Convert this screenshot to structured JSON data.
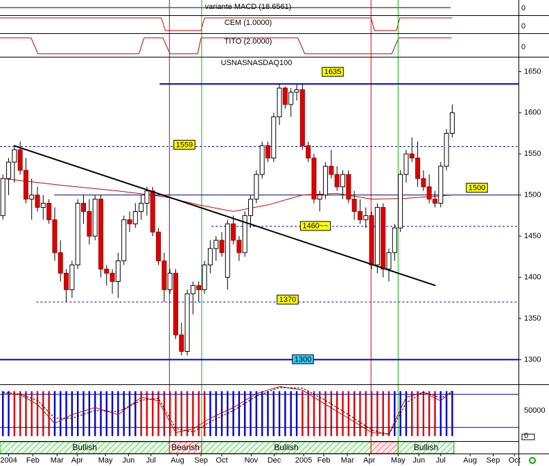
{
  "chart_data": [
    {
      "type": "strip",
      "title": "variante MACD (18.6561)",
      "ylim": [
        -1,
        1
      ],
      "yticks": [
        0
      ]
    },
    {
      "type": "step",
      "title": "CEM (1.0000)",
      "ylim": [
        -1,
        1
      ],
      "yticks": [
        0
      ],
      "xlim": [
        -0.5,
        89.5
      ],
      "color": "#cc0000",
      "x": [
        -0.5,
        27.5,
        28.2,
        34.4,
        35.0,
        63.9,
        64.5,
        68.3,
        68.9,
        78
      ],
      "values": [
        0.7,
        0.7,
        -0.7,
        -0.7,
        0.7,
        0.7,
        -0.7,
        -0.7,
        0.7,
        0.7
      ]
    },
    {
      "type": "step",
      "title": "TITO (2.0000)",
      "ylim": [
        -1,
        1
      ],
      "yticks": [
        0
      ],
      "xlim": [
        -0.5,
        89.5
      ],
      "color": "#cc0000",
      "x": [
        -0.5,
        4.9,
        6.1,
        23.6,
        24.5,
        27.8,
        29.0,
        33.8,
        34.4,
        51.2,
        52.4,
        67.5,
        68.7,
        77.9
      ],
      "values": [
        0.6,
        0.6,
        -0.75,
        -0.75,
        0.6,
        0.6,
        -0.75,
        -0.75,
        0.6,
        0.6,
        -0.75,
        -0.75,
        0.6,
        0.6
      ]
    },
    {
      "type": "candlestick",
      "title": "USNASNASDAQ100",
      "xlim": [
        -0.5,
        89.5
      ],
      "ylim": [
        1270,
        1668
      ],
      "yticks": [
        1300,
        1350,
        1400,
        1450,
        1500,
        1550,
        1600,
        1650
      ],
      "xticks": [
        {
          "value": 1,
          "label": "2004"
        },
        {
          "value": 5.2,
          "label": "Feb"
        },
        {
          "value": 9.4,
          "label": "Mar"
        },
        {
          "value": 12.9,
          "label": "Apr"
        },
        {
          "value": 17.8,
          "label": "May"
        },
        {
          "value": 21.8,
          "label": "Jun"
        },
        {
          "value": 25.7,
          "label": "Jul"
        },
        {
          "value": 30.3,
          "label": "Aug"
        },
        {
          "value": 34.4,
          "label": "Sep"
        },
        {
          "value": 38,
          "label": "Oct"
        },
        {
          "value": 43.1,
          "label": "Nov"
        },
        {
          "value": 47.1,
          "label": "Dec"
        },
        {
          "value": 52.2,
          "label": "2005"
        },
        {
          "value": 55.7,
          "label": "Feb"
        },
        {
          "value": 59.8,
          "label": "Mar"
        },
        {
          "value": 63.6,
          "label": "Apr"
        },
        {
          "value": 68.6,
          "label": "May"
        },
        {
          "value": 72.2,
          "label": "Jun"
        },
        {
          "value": 76,
          "label": "Jul"
        },
        {
          "value": 81.1,
          "label": "Aug"
        },
        {
          "value": 85.1,
          "label": "Sep"
        },
        {
          "value": 88.8,
          "label": "Oct"
        }
      ],
      "up_color": "#ffffff",
      "down_color": "#e00000",
      "x": [
        0,
        1,
        2,
        3,
        4,
        5,
        6,
        7,
        8,
        9,
        10,
        11,
        12,
        13,
        14,
        15,
        16,
        17,
        18,
        19,
        20,
        21,
        22,
        23,
        24,
        25,
        26,
        27,
        28,
        29,
        30,
        31,
        32,
        33,
        34,
        35,
        36,
        37,
        38,
        39,
        40,
        41,
        42,
        43,
        44,
        45,
        46,
        47,
        48,
        49,
        50,
        51,
        52,
        53,
        54,
        55,
        56,
        57,
        58,
        59,
        60,
        61,
        62,
        63,
        64,
        65,
        66,
        67,
        68,
        69,
        70,
        71,
        72,
        73,
        74,
        75,
        76,
        77,
        78
      ],
      "ohlc": [
        [
          1475,
          1525,
          1470,
          1520
        ],
        [
          1520,
          1545,
          1500,
          1540
        ],
        [
          1540,
          1560,
          1515,
          1555
        ],
        [
          1555,
          1565,
          1525,
          1530
        ],
        [
          1530,
          1545,
          1490,
          1495
        ],
        [
          1495,
          1520,
          1470,
          1500
        ],
        [
          1500,
          1510,
          1480,
          1485
        ],
        [
          1485,
          1500,
          1470,
          1490
        ],
        [
          1490,
          1495,
          1465,
          1470
        ],
        [
          1470,
          1485,
          1420,
          1430
        ],
        [
          1430,
          1445,
          1395,
          1405
        ],
        [
          1405,
          1410,
          1370,
          1385
        ],
        [
          1385,
          1420,
          1375,
          1415
        ],
        [
          1415,
          1495,
          1410,
          1490
        ],
        [
          1490,
          1500,
          1465,
          1480
        ],
        [
          1480,
          1495,
          1440,
          1450
        ],
        [
          1450,
          1500,
          1445,
          1495
        ],
        [
          1495,
          1500,
          1400,
          1410
        ],
        [
          1410,
          1415,
          1390,
          1405
        ],
        [
          1405,
          1410,
          1380,
          1395
        ],
        [
          1395,
          1430,
          1375,
          1420
        ],
        [
          1420,
          1475,
          1415,
          1470
        ],
        [
          1470,
          1480,
          1455,
          1465
        ],
        [
          1465,
          1490,
          1460,
          1480
        ],
        [
          1480,
          1500,
          1470,
          1490
        ],
        [
          1490,
          1510,
          1475,
          1505
        ],
        [
          1505,
          1510,
          1450,
          1455
        ],
        [
          1455,
          1460,
          1415,
          1420
        ],
        [
          1420,
          1430,
          1370,
          1385
        ],
        [
          1385,
          1410,
          1380,
          1405
        ],
        [
          1405,
          1410,
          1325,
          1330
        ],
        [
          1330,
          1345,
          1305,
          1310
        ],
        [
          1310,
          1385,
          1305,
          1380
        ],
        [
          1380,
          1395,
          1355,
          1390
        ],
        [
          1390,
          1395,
          1370,
          1385
        ],
        [
          1385,
          1420,
          1380,
          1415
        ],
        [
          1415,
          1445,
          1405,
          1435
        ],
        [
          1435,
          1450,
          1420,
          1445
        ],
        [
          1445,
          1455,
          1425,
          1430
        ],
        [
          1400,
          1470,
          1385,
          1465
        ],
        [
          1465,
          1475,
          1440,
          1445
        ],
        [
          1445,
          1450,
          1420,
          1430
        ],
        [
          1430,
          1480,
          1425,
          1475
        ],
        [
          1475,
          1500,
          1460,
          1495
        ],
        [
          1495,
          1530,
          1490,
          1525
        ],
        [
          1525,
          1565,
          1520,
          1560
        ],
        [
          1560,
          1565,
          1540,
          1545
        ],
        [
          1545,
          1600,
          1540,
          1595
        ],
        [
          1595,
          1635,
          1585,
          1630
        ],
        [
          1630,
          1632,
          1605,
          1610
        ],
        [
          1610,
          1630,
          1595,
          1625
        ],
        [
          1625,
          1635,
          1615,
          1628
        ],
        [
          1628,
          1635,
          1555,
          1560
        ],
        [
          1560,
          1565,
          1540,
          1545
        ],
        [
          1545,
          1550,
          1490,
          1495
        ],
        [
          1495,
          1505,
          1480,
          1500
        ],
        [
          1500,
          1540,
          1495,
          1535
        ],
        [
          1535,
          1555,
          1520,
          1525
        ],
        [
          1525,
          1535,
          1505,
          1510
        ],
        [
          1510,
          1530,
          1495,
          1525
        ],
        [
          1525,
          1530,
          1490,
          1495
        ],
        [
          1495,
          1505,
          1470,
          1480
        ],
        [
          1480,
          1495,
          1465,
          1470
        ],
        [
          1470,
          1485,
          1460,
          1475
        ],
        [
          1475,
          1480,
          1410,
          1415
        ],
        [
          1415,
          1490,
          1405,
          1485
        ],
        [
          1485,
          1490,
          1400,
          1410
        ],
        [
          1410,
          1435,
          1395,
          1430
        ],
        [
          1430,
          1465,
          1420,
          1460
        ],
        [
          1460,
          1530,
          1455,
          1525
        ],
        [
          1525,
          1555,
          1515,
          1550
        ],
        [
          1550,
          1570,
          1540,
          1545
        ],
        [
          1545,
          1565,
          1510,
          1520
        ],
        [
          1520,
          1530,
          1505,
          1510
        ],
        [
          1510,
          1525,
          1490,
          1495
        ],
        [
          1495,
          1505,
          1485,
          1490
        ],
        [
          1490,
          1540,
          1485,
          1535
        ],
        [
          1535,
          1580,
          1530,
          1575
        ],
        [
          1575,
          1610,
          1570,
          1600
        ]
      ],
      "moving_average": {
        "color": "#cc0000",
        "x": [
          0,
          10,
          20,
          28,
          34,
          40,
          46,
          52,
          58,
          64,
          70,
          78
        ],
        "values": [
          1520,
          1512,
          1505,
          1498,
          1488,
          1480,
          1488,
          1500,
          1502,
          1495,
          1496,
          1500
        ]
      },
      "trendline": {
        "color": "#000000",
        "x": [
          1.9,
          75.1
        ],
        "values": [
          1560,
          1390
        ]
      },
      "levels": [
        {
          "value": 1635,
          "label": "1635",
          "from": 27.2,
          "color": "#0000cc",
          "style": "solid",
          "width": 2,
          "label_fill": "#ffff00"
        },
        {
          "value": 1559,
          "label": "1559",
          "from": -0.5,
          "color": "#0000cc",
          "style": "dashed",
          "width": 1,
          "label_fill": "#ffff00"
        },
        {
          "value": 1500,
          "label": "1500",
          "from": 8.9,
          "color": "#000080",
          "style": "solid",
          "width": 1,
          "label_fill": "#ffff00"
        },
        {
          "value": 1462,
          "label": "1460~~",
          "from": 36.2,
          "color": "#0000cc",
          "style": "dashed",
          "width": 1,
          "label_fill": "#ffff00"
        },
        {
          "value": 1370,
          "label": "1370",
          "from": 5.8,
          "color": "#0000cc",
          "style": "dashed",
          "width": 1,
          "label_fill": "#ffff00"
        },
        {
          "value": 1300,
          "label": "1300",
          "from": -0.5,
          "color": "#0000cc",
          "style": "solid",
          "width": 2,
          "label_fill": "#33ccff"
        }
      ],
      "signals": [
        {
          "x": 28.9,
          "color": "#e00000"
        },
        {
          "x": 34.5,
          "color": "#00bb00"
        },
        {
          "x": 63.9,
          "color": "#e00000"
        },
        {
          "x": 68.6,
          "color": "#00bb00"
        }
      ]
    },
    {
      "type": "oscillator",
      "xlim": [
        -0.5,
        89.5
      ],
      "ylim": [
        -9700,
        101400
      ],
      "yticks": [
        0,
        50000
      ],
      "x": [
        0,
        1,
        2,
        3,
        4,
        5,
        6,
        7,
        8,
        9,
        10,
        11,
        12,
        13,
        14,
        15,
        16,
        17,
        18,
        19,
        20,
        21,
        22,
        23,
        24,
        25,
        26,
        27,
        28,
        29,
        30,
        31,
        32,
        33,
        34,
        35,
        36,
        37,
        38,
        39,
        40,
        41,
        42,
        43,
        44,
        45,
        46,
        47,
        48,
        49,
        50,
        51,
        52,
        53,
        54,
        55,
        56,
        57,
        58,
        59,
        60,
        61,
        62,
        63,
        64,
        65,
        66,
        67,
        68,
        69,
        70,
        71,
        72,
        73,
        74,
        75,
        76,
        77,
        78
      ],
      "values": [
        88000,
        88000,
        88000,
        88000,
        88000,
        88000,
        88000,
        88000,
        88000,
        88000,
        88000,
        88000,
        88000,
        88000,
        88000,
        88000,
        88000,
        88000,
        88000,
        88000,
        88000,
        88000,
        88000,
        88000,
        88000,
        88000,
        88000,
        88000,
        88000,
        88000,
        88000,
        88000,
        88000,
        88000,
        88000,
        88000,
        88000,
        88000,
        88000,
        88000,
        88000,
        88000,
        88000,
        88000,
        88000,
        88000,
        88000,
        88000,
        88000,
        88000,
        88000,
        88000,
        88000,
        88000,
        88000,
        88000,
        88000,
        88000,
        88000,
        88000,
        88000,
        88000,
        88000,
        88000,
        88000,
        88000,
        88000,
        88000,
        88000,
        88000,
        88000,
        88000,
        88000,
        88000,
        88000,
        88000,
        88000,
        88000,
        88000
      ],
      "colors": [
        "#0000cc",
        "#0000cc",
        "#e00000",
        "#e00000",
        "#e00000",
        "#e00000",
        "#e00000",
        "#e00000",
        "#e00000",
        "#0000cc",
        "#0000cc",
        "#0000cc",
        "#0000cc",
        "#0000cc",
        "#0000cc",
        "#0000cc",
        "#0000cc",
        "#0000cc",
        "#0000cc",
        "#0000cc",
        "#0000cc",
        "#0000cc",
        "#0000cc",
        "#0000cc",
        "#e00000",
        "#e00000",
        "#e00000",
        "#e00000",
        "#e00000",
        "#e00000",
        "#e00000",
        "#e00000",
        "#e00000",
        "#e00000",
        "#e00000",
        "#e00000",
        "#0000cc",
        "#0000cc",
        "#0000cc",
        "#0000cc",
        "#0000cc",
        "#0000cc",
        "#0000cc",
        "#0000cc",
        "#0000cc",
        "#0000cc",
        "#0000cc",
        "#0000cc",
        "#0000cc",
        "#0000cc",
        "#0000cc",
        "#0000cc",
        "#e00000",
        "#e00000",
        "#e00000",
        "#e00000",
        "#e00000",
        "#e00000",
        "#e00000",
        "#e00000",
        "#e00000",
        "#e00000",
        "#e00000",
        "#e00000",
        "#e00000",
        "#e00000",
        "#e00000",
        "#e00000",
        "#0000cc",
        "#0000cc",
        "#0000cc",
        "#e00000",
        "#e00000",
        "#e00000",
        "#e00000",
        "#e00000",
        "#0000cc",
        "#0000cc",
        "#0000cc"
      ],
      "levels": [
        82000,
        17000
      ],
      "level_color": "#0000cc",
      "lines": [
        {
          "color": "#cc0000",
          "style": "solid",
          "x": [
            0,
            3,
            6,
            9,
            12,
            16,
            20,
            24,
            27,
            30,
            33,
            36,
            40,
            44,
            48,
            52,
            56,
            60,
            64,
            67,
            70,
            73,
            76,
            78
          ],
          "values": [
            83000,
            81000,
            62000,
            25000,
            42000,
            56000,
            42000,
            76000,
            69000,
            7000,
            14000,
            35000,
            56000,
            83000,
            97000,
            90000,
            62000,
            35000,
            7000,
            4000,
            76000,
            86000,
            69000,
            89000
          ]
        },
        {
          "color": "#000000",
          "style": "dashed",
          "x": [
            0,
            3,
            6,
            9,
            12,
            16,
            20,
            24,
            27,
            30,
            33,
            36,
            40,
            44,
            48,
            52,
            56,
            60,
            64,
            67,
            70,
            73,
            76,
            78
          ],
          "values": [
            86000,
            82000,
            70000,
            35000,
            35000,
            50000,
            48000,
            70000,
            74000,
            15000,
            8000,
            28000,
            50000,
            78000,
            95000,
            94000,
            70000,
            42000,
            12000,
            3000,
            65000,
            86000,
            75000,
            85000
          ]
        }
      ]
    },
    {
      "type": "regime",
      "xlim": [
        -0.5,
        89.5
      ],
      "segments": [
        {
          "label": "Bullish",
          "from": -0.5,
          "to": 28.9,
          "color": "#00aa00"
        },
        {
          "label": "Bearish",
          "from": 28.9,
          "to": 34.5,
          "color": "#e00000"
        },
        {
          "label": "Bullish",
          "from": 34.5,
          "to": 63.9,
          "color": "#00aa00"
        },
        {
          "from": 63.9,
          "to": 68.6,
          "color": "#e00000"
        },
        {
          "label": "Bullish",
          "from": 68.6,
          "to": 78.3,
          "color": "#00aa00"
        }
      ]
    }
  ]
}
